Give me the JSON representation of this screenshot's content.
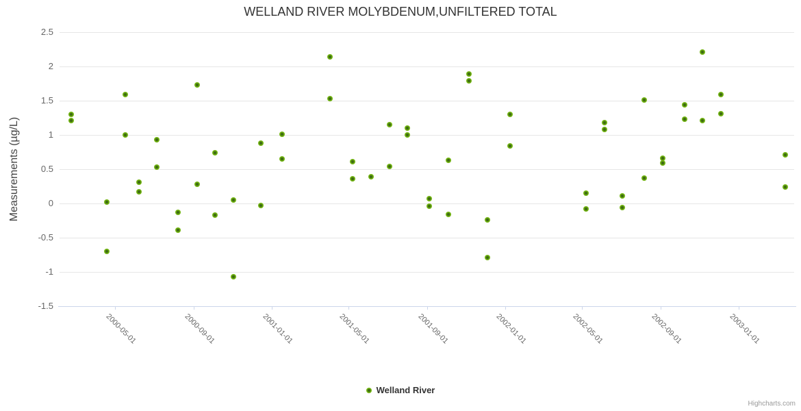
{
  "chart": {
    "title": "WELLAND RIVER MOLYBDENUM,UNFILTERED TOTAL",
    "credit": "Highcharts.com"
  },
  "chart_data": {
    "type": "scatter",
    "title": "WELLAND RIVER MOLYBDENUM,UNFILTERED TOTAL",
    "xlabel": "",
    "ylabel": "Measurements (µg/L)",
    "ylim": [
      -1.5,
      2.5
    ],
    "grid": true,
    "legend_position": "bottom",
    "marker_color": "#72b412",
    "grid_color": "#e6e6e6",
    "axis_color": "#ccd6eb",
    "y_ticks": [
      {
        "value": 2.5,
        "label": "2.5"
      },
      {
        "value": 2,
        "label": "2"
      },
      {
        "value": 1.5,
        "label": "1.5"
      },
      {
        "value": 1,
        "label": "1"
      },
      {
        "value": 0.5,
        "label": "0.5"
      },
      {
        "value": 0,
        "label": "0"
      },
      {
        "value": -0.5,
        "label": "-0.5"
      },
      {
        "value": -1,
        "label": "-1"
      },
      {
        "value": -1.5,
        "label": "-1.5"
      }
    ],
    "x_ticks": [
      "2000-05-01",
      "2000-09-01",
      "2001-01-01",
      "2001-05-01",
      "2001-09-01",
      "2002-01-01",
      "2002-05-01",
      "2002-09-01",
      "2003-01-01"
    ],
    "series": [
      {
        "name": "Welland River",
        "color": "#72b412",
        "points": [
          [
            "2000-02-23",
            1.3
          ],
          [
            "2000-02-23",
            1.21
          ],
          [
            "2000-04-18",
            0.02
          ],
          [
            "2000-04-18",
            -0.7
          ],
          [
            "2000-05-17",
            1.59
          ],
          [
            "2000-05-17",
            1.0
          ],
          [
            "2000-06-07",
            0.31
          ],
          [
            "2000-06-07",
            0.17
          ],
          [
            "2000-07-05",
            0.93
          ],
          [
            "2000-07-05",
            0.53
          ],
          [
            "2000-08-08",
            -0.13
          ],
          [
            "2000-08-08",
            -0.39
          ],
          [
            "2000-09-06",
            1.73
          ],
          [
            "2000-09-06",
            0.28
          ],
          [
            "2000-10-04",
            0.74
          ],
          [
            "2000-10-04",
            -0.17
          ],
          [
            "2000-11-02",
            0.05
          ],
          [
            "2000-11-02",
            -1.07
          ],
          [
            "2000-12-15",
            0.88
          ],
          [
            "2000-12-15",
            -0.03
          ],
          [
            "2001-01-17",
            1.01
          ],
          [
            "2001-01-17",
            0.65
          ],
          [
            "2001-04-02",
            2.14
          ],
          [
            "2001-04-02",
            1.53
          ],
          [
            "2001-05-08",
            0.61
          ],
          [
            "2001-05-08",
            0.36
          ],
          [
            "2001-06-05",
            0.39
          ],
          [
            "2001-07-04",
            1.15
          ],
          [
            "2001-07-04",
            0.54
          ],
          [
            "2001-08-01",
            1.1
          ],
          [
            "2001-08-01",
            1.0
          ],
          [
            "2001-09-04",
            0.07
          ],
          [
            "2001-09-04",
            -0.04
          ],
          [
            "2001-10-04",
            0.63
          ],
          [
            "2001-10-04",
            -0.16
          ],
          [
            "2001-11-06",
            1.89
          ],
          [
            "2001-11-06",
            1.79
          ],
          [
            "2001-12-04",
            -0.24
          ],
          [
            "2001-12-04",
            -0.79
          ],
          [
            "2002-01-09",
            1.3
          ],
          [
            "2002-01-09",
            0.84
          ],
          [
            "2002-05-08",
            0.15
          ],
          [
            "2002-05-08",
            -0.08
          ],
          [
            "2002-06-05",
            1.18
          ],
          [
            "2002-06-05",
            1.08
          ],
          [
            "2002-07-03",
            0.11
          ],
          [
            "2002-07-03",
            -0.06
          ],
          [
            "2002-08-07",
            1.51
          ],
          [
            "2002-08-07",
            0.37
          ],
          [
            "2002-09-05",
            0.66
          ],
          [
            "2002-09-05",
            0.59
          ],
          [
            "2002-10-09",
            1.44
          ],
          [
            "2002-10-09",
            1.23
          ],
          [
            "2002-11-06",
            2.21
          ],
          [
            "2002-11-06",
            1.21
          ],
          [
            "2002-12-05",
            1.59
          ],
          [
            "2002-12-05",
            1.31
          ],
          [
            "2003-03-15",
            0.71
          ],
          [
            "2003-03-15",
            0.24
          ]
        ]
      }
    ]
  }
}
